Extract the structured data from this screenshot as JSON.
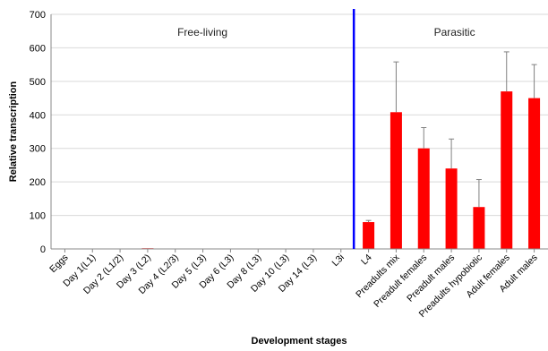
{
  "chart_data": {
    "type": "bar",
    "ylabel": "Relative transcription",
    "xlabel": "Development stages",
    "ylim": [
      0,
      700
    ],
    "yticks": [
      0,
      100,
      200,
      300,
      400,
      500,
      600,
      700
    ],
    "grid": true,
    "categories": [
      "Eggs",
      "Day 1(L1)",
      "Day 2 (L1/2)",
      "Day 3 (L2)",
      "Day 4 (L2/3)",
      "Day 5 (L3)",
      "Day 6 (L3)",
      "Day 8 (L3)",
      "Day 10 (L3)",
      "Day 14 (L3)",
      "L3i",
      "L4",
      "Preadults mix",
      "Preadult females",
      "Preadult males",
      "Preadults hypobiotic",
      "Adult females",
      "Adult males"
    ],
    "values": [
      1,
      1,
      1,
      2,
      1,
      1,
      1,
      1,
      1,
      1,
      1,
      80,
      408,
      300,
      240,
      125,
      470,
      450
    ],
    "errors": [
      0,
      0,
      0,
      0,
      0,
      0,
      0,
      0,
      0,
      0,
      0,
      5,
      150,
      62,
      88,
      82,
      118,
      100
    ],
    "bar_color": "#ff0000",
    "error_color": "#808080",
    "divider_color": "#0000ff",
    "regions": [
      {
        "label": "Free-living"
      },
      {
        "label": "Parasitic"
      }
    ]
  }
}
